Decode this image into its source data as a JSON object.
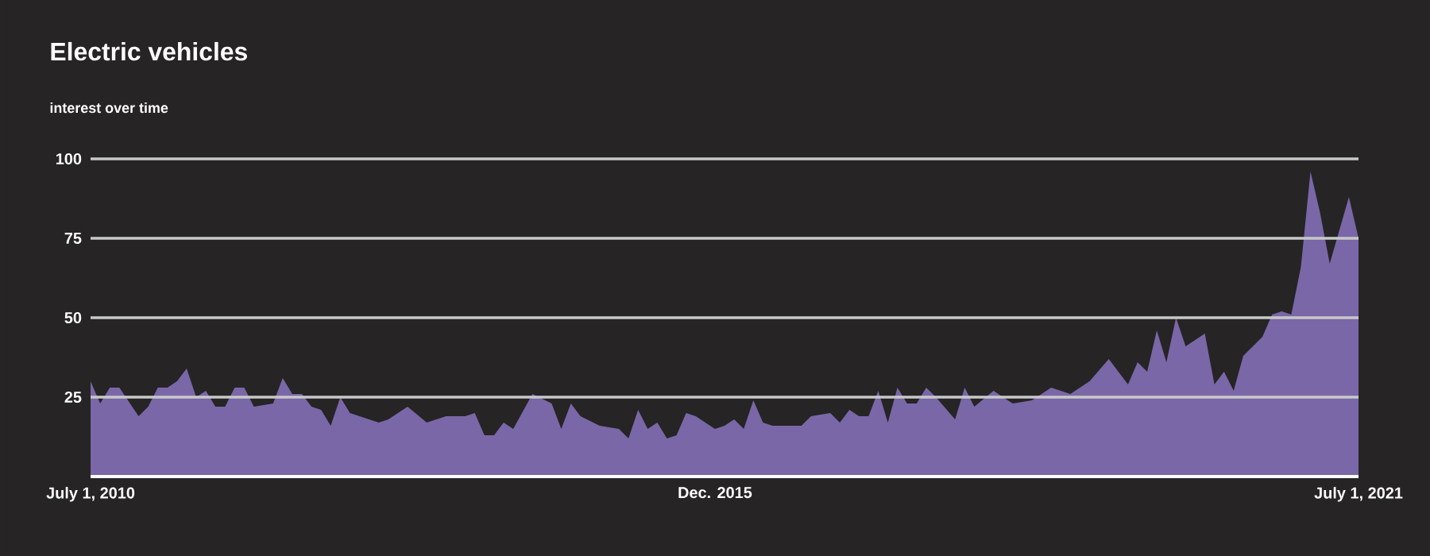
{
  "chart_data": {
    "type": "area",
    "title": "Electric vehicles",
    "subtitle": "interest over time",
    "xlim": [
      "2010-07-01",
      "2021-07-01"
    ],
    "xticks": [
      {
        "value": "2010-07-01",
        "label": "July 1, 2010"
      },
      {
        "value": "2015-12",
        "label": "Dec. 2015"
      },
      {
        "value": "2021-07-01",
        "label": "July 1, 2021"
      }
    ],
    "ylim": [
      0,
      100
    ],
    "yticks": [
      25,
      50,
      75,
      100
    ],
    "grid": "y",
    "series": [
      {
        "color": "#7a67a7",
        "x": [
          "2010-07",
          "2010-08",
          "2010-09",
          "2010-10",
          "2010-12",
          "2011-01",
          "2011-02",
          "2011-03",
          "2011-04",
          "2011-05",
          "2011-06",
          "2011-07",
          "2011-08",
          "2011-09",
          "2011-10",
          "2011-11",
          "2011-12",
          "2012-02",
          "2012-03",
          "2012-04",
          "2012-05",
          "2012-06",
          "2012-07",
          "2012-08",
          "2012-09",
          "2012-10",
          "2012-11",
          "2013-01",
          "2013-02",
          "2013-04",
          "2013-06",
          "2013-08",
          "2013-10",
          "2013-11",
          "2013-12",
          "2014-01",
          "2014-02",
          "2014-03",
          "2014-05",
          "2014-07",
          "2014-08",
          "2014-09",
          "2014-10",
          "2014-12",
          "2015-02",
          "2015-03",
          "2015-04",
          "2015-05",
          "2015-06",
          "2015-07",
          "2015-08",
          "2015-09",
          "2015-10",
          "2015-12",
          "2016-01",
          "2016-02",
          "2016-03",
          "2016-04",
          "2016-05",
          "2016-06",
          "2016-09",
          "2016-10",
          "2016-12",
          "2017-01",
          "2017-02",
          "2017-03",
          "2017-04",
          "2017-05",
          "2017-06",
          "2017-07",
          "2017-08",
          "2017-09",
          "2017-10",
          "2017-11",
          "2018-01",
          "2018-02",
          "2018-03",
          "2018-05",
          "2018-07",
          "2018-09",
          "2018-11",
          "2019-01",
          "2019-03",
          "2019-05",
          "2019-07",
          "2019-08",
          "2019-09",
          "2019-10",
          "2019-11",
          "2019-12",
          "2020-01",
          "2020-03",
          "2020-04",
          "2020-05",
          "2020-06",
          "2020-07",
          "2020-09",
          "2020-10",
          "2020-11",
          "2020-12",
          "2021-01",
          "2021-02",
          "2021-03",
          "2021-04",
          "2021-06",
          "2021-07"
        ],
        "values": [
          30,
          23,
          28,
          28,
          19,
          22,
          28,
          28,
          30,
          34,
          25,
          27,
          22,
          22,
          28,
          28,
          22,
          23,
          31,
          26,
          26,
          22,
          21,
          16,
          25,
          20,
          19,
          17,
          18,
          22,
          17,
          19,
          19,
          20,
          13,
          13,
          17,
          15,
          26,
          23,
          15,
          23,
          19,
          16,
          15,
          12,
          21,
          15,
          17,
          12,
          13,
          20,
          19,
          15,
          16,
          18,
          15,
          24,
          17,
          16,
          16,
          19,
          20,
          17,
          21,
          19,
          19,
          27,
          17,
          28,
          23,
          23,
          28,
          25,
          18,
          28,
          22,
          27,
          23,
          24,
          28,
          26,
          30,
          37,
          29,
          36,
          33,
          46,
          36,
          50,
          41,
          45,
          29,
          33,
          27,
          38,
          44,
          51,
          52,
          51,
          66,
          96,
          83,
          67,
          88,
          75
        ]
      }
    ]
  }
}
